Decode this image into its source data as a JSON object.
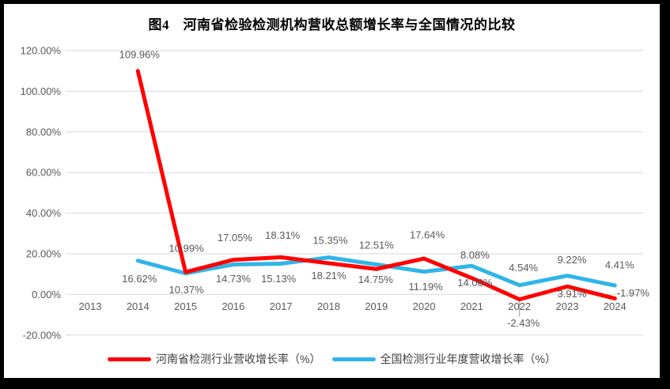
{
  "title": "图4　河南省检验检测机构营收总额增长率与全国情况的比较",
  "chart_data": {
    "type": "line",
    "categories": [
      "2013",
      "2014",
      "2015",
      "2016",
      "2017",
      "2018",
      "2019",
      "2020",
      "2021",
      "2022",
      "2023",
      "2024"
    ],
    "series": [
      {
        "name": "河南省检测行业营收增长率（%）",
        "color": "#FF0000",
        "values": [
          null,
          109.96,
          10.99,
          17.05,
          18.31,
          15.35,
          12.51,
          17.64,
          8.08,
          -2.43,
          3.91,
          -1.97
        ]
      },
      {
        "name": "全国检测行业年度营收增长率（%）",
        "color": "#2FB5E8",
        "values": [
          null,
          16.62,
          10.37,
          14.73,
          15.13,
          18.21,
          14.75,
          11.19,
          14.06,
          4.54,
          9.22,
          4.41
        ]
      }
    ],
    "ylim": [
      -20,
      120
    ],
    "y_ticks": [
      120,
      100,
      80,
      60,
      40,
      20,
      0,
      -20
    ],
    "y_tick_labels": [
      "120.00%",
      "100.00%",
      "80.00%",
      "60.00%",
      "40.00%",
      "20.00%",
      "0.00%",
      "-20.00%"
    ],
    "value_format": "0.00%",
    "grid": true,
    "legend_position": "bottom",
    "layout": {
      "label_dx": [
        [
          0,
          2,
          1,
          2,
          2,
          2,
          0,
          4,
          4,
          5,
          6,
          23
        ],
        [
          0,
          2,
          1,
          0,
          -3,
          0,
          -1,
          2,
          4,
          5,
          6,
          6
        ]
      ],
      "label_dy": [
        [
          0,
          -21,
          -30,
          -28,
          -28,
          -29,
          -30,
          -30,
          -29,
          30,
          9,
          -7
        ],
        [
          0,
          23,
          21,
          18,
          19,
          23,
          19,
          19,
          21,
          -22,
          -20,
          -26
        ]
      ],
      "leader": {
        "series": 0,
        "index": 9
      },
      "draw_order": [
        1,
        0
      ]
    }
  },
  "colors": {
    "grid": "#D9D9D9",
    "axis_text": "#595959",
    "label_text": "#595959",
    "leader": "#A6A6A6",
    "frame": "#000000",
    "background": "#FFFFFF"
  }
}
